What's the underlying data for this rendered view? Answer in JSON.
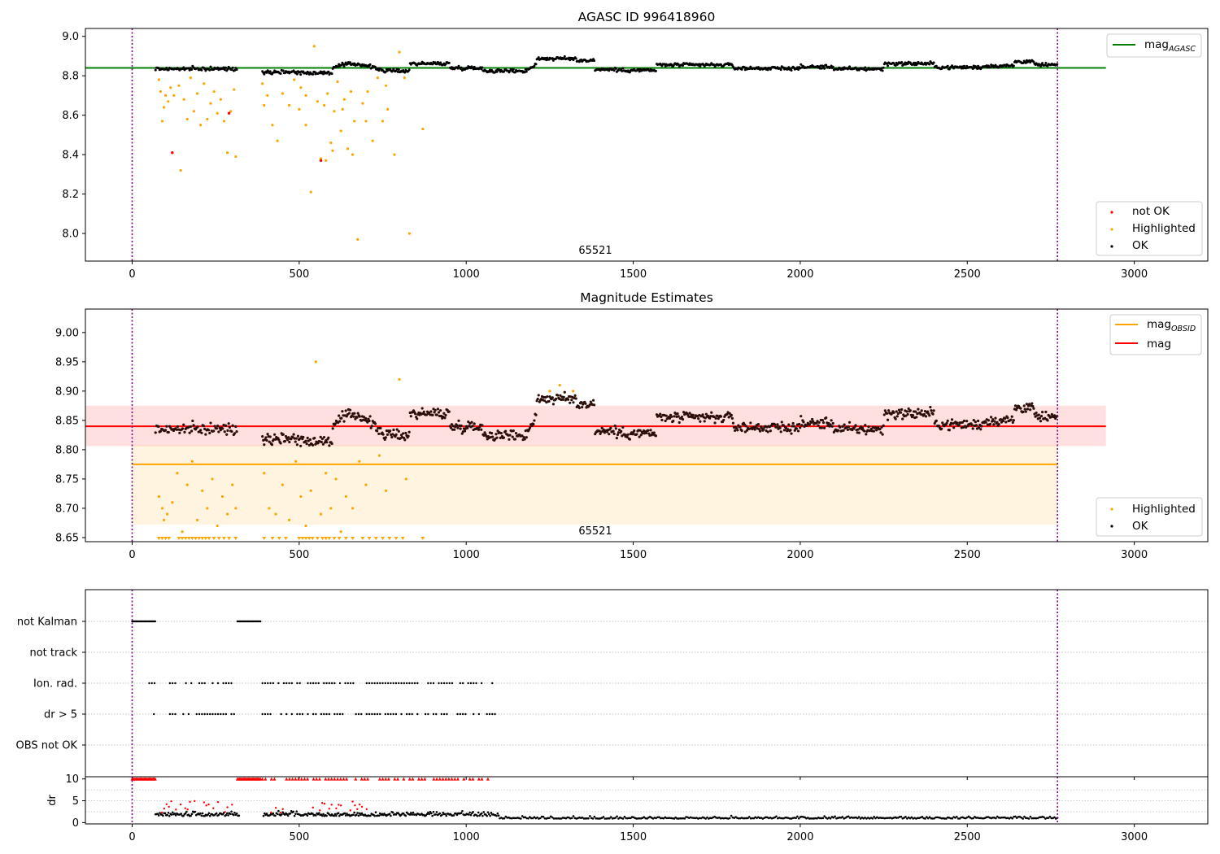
{
  "chart_data": [
    {
      "type": "scatter",
      "title": "AGASC ID 996418960",
      "xlim": [
        -140,
        3220
      ],
      "ylim": [
        7.86,
        9.04
      ],
      "xticks": [
        "0",
        "500",
        "1000",
        "1500",
        "2000",
        "2500",
        "3000"
      ],
      "yticks": [
        "8.0",
        "8.2",
        "8.4",
        "8.6",
        "8.8",
        "9.0"
      ],
      "annotation": "65521",
      "vlines": [
        0,
        2770
      ],
      "series": [
        {
          "name": "mag_AGASC",
          "kind": "hline",
          "y": 8.84,
          "x_range": [
            -140,
            2915
          ],
          "color": "#008000"
        },
        {
          "name": "OK",
          "kind": "points",
          "color": "#000000",
          "track": "ok_track"
        },
        {
          "name": "Highlighted",
          "kind": "points",
          "color": "#ffa500",
          "points": [
            [
              80,
              8.78
            ],
            [
              85,
              8.72
            ],
            [
              90,
              8.57
            ],
            [
              95,
              8.64
            ],
            [
              100,
              8.7
            ],
            [
              108,
              8.67
            ],
            [
              115,
              8.74
            ],
            [
              125,
              8.7
            ],
            [
              140,
              8.75
            ],
            [
              145,
              8.32
            ],
            [
              155,
              8.68
            ],
            [
              165,
              8.58
            ],
            [
              175,
              8.79
            ],
            [
              185,
              8.62
            ],
            [
              195,
              8.71
            ],
            [
              205,
              8.55
            ],
            [
              215,
              8.76
            ],
            [
              225,
              8.58
            ],
            [
              235,
              8.66
            ],
            [
              245,
              8.72
            ],
            [
              255,
              8.61
            ],
            [
              265,
              8.68
            ],
            [
              275,
              8.57
            ],
            [
              285,
              8.41
            ],
            [
              295,
              8.62
            ],
            [
              305,
              8.73
            ],
            [
              310,
              8.39
            ],
            [
              390,
              8.76
            ],
            [
              395,
              8.65
            ],
            [
              405,
              8.7
            ],
            [
              420,
              8.55
            ],
            [
              435,
              8.47
            ],
            [
              450,
              8.71
            ],
            [
              470,
              8.65
            ],
            [
              485,
              8.78
            ],
            [
              505,
              8.74
            ],
            [
              520,
              8.55
            ],
            [
              535,
              8.21
            ],
            [
              545,
              8.95
            ],
            [
              555,
              8.67
            ],
            [
              565,
              8.38
            ],
            [
              575,
              8.65
            ],
            [
              585,
              8.71
            ],
            [
              595,
              8.46
            ],
            [
              605,
              8.62
            ],
            [
              615,
              8.77
            ],
            [
              625,
              8.52
            ],
            [
              635,
              8.68
            ],
            [
              645,
              8.43
            ],
            [
              655,
              8.72
            ],
            [
              665,
              8.57
            ],
            [
              675,
              7.97
            ],
            [
              690,
              8.66
            ],
            [
              705,
              8.72
            ],
            [
              720,
              8.47
            ],
            [
              735,
              8.79
            ],
            [
              750,
              8.57
            ],
            [
              765,
              8.63
            ],
            [
              785,
              8.4
            ],
            [
              800,
              8.92
            ],
            [
              815,
              8.79
            ],
            [
              830,
              8.0
            ],
            [
              870,
              8.53
            ],
            [
              500,
              8.63
            ],
            [
              520,
              8.7
            ],
            [
              580,
              8.37
            ],
            [
              600,
              8.42
            ],
            [
              630,
              8.63
            ],
            [
              660,
              8.4
            ],
            [
              700,
              8.57
            ],
            [
              760,
              8.75
            ]
          ]
        },
        {
          "name": "not OK",
          "kind": "points",
          "color": "#ff0000",
          "points": [
            [
              120,
              8.41
            ],
            [
              290,
              8.61
            ],
            [
              565,
              8.37
            ]
          ]
        }
      ],
      "legend_top": [
        "mag_AGASC"
      ],
      "legend_bottom": [
        "not OK",
        "Highlighted",
        "OK"
      ]
    },
    {
      "type": "scatter",
      "title": "Magnitude Estimates",
      "xlim": [
        -140,
        3220
      ],
      "ylim": [
        8.643,
        9.04
      ],
      "xticks": [
        "0",
        "500",
        "1000",
        "1500",
        "2000",
        "2500",
        "3000"
      ],
      "yticks": [
        "8.65",
        "8.70",
        "8.75",
        "8.80",
        "8.85",
        "8.90",
        "8.95",
        "9.00"
      ],
      "annotation": "65521",
      "vlines": [
        0,
        2770
      ],
      "series": [
        {
          "name": "mag_OBSID",
          "kind": "hline",
          "y": 8.775,
          "x_range": [
            0,
            2770
          ],
          "color": "#ffa500",
          "band": [
            8.672,
            8.808
          ]
        },
        {
          "name": "mag",
          "kind": "hline",
          "y": 8.84,
          "x_range": [
            -140,
            2915
          ],
          "color": "#ff0000",
          "band": [
            8.806,
            8.875
          ]
        },
        {
          "name": "OK",
          "kind": "points",
          "color": "#000000",
          "track": "ok_track"
        },
        {
          "name": "Highlighted",
          "kind": "points",
          "color": "#ffa500",
          "points": [
            [
              80,
              8.72
            ],
            [
              90,
              8.7
            ],
            [
              95,
              8.68
            ],
            [
              105,
              8.69
            ],
            [
              120,
              8.71
            ],
            [
              135,
              8.76
            ],
            [
              150,
              8.66
            ],
            [
              165,
              8.74
            ],
            [
              180,
              8.78
            ],
            [
              195,
              8.68
            ],
            [
              210,
              8.73
            ],
            [
              225,
              8.7
            ],
            [
              240,
              8.75
            ],
            [
              255,
              8.67
            ],
            [
              270,
              8.72
            ],
            [
              285,
              8.69
            ],
            [
              300,
              8.74
            ],
            [
              310,
              8.7
            ],
            [
              395,
              8.76
            ],
            [
              410,
              8.7
            ],
            [
              430,
              8.69
            ],
            [
              450,
              8.74
            ],
            [
              470,
              8.68
            ],
            [
              490,
              8.78
            ],
            [
              505,
              8.72
            ],
            [
              520,
              8.67
            ],
            [
              535,
              8.73
            ],
            [
              550,
              8.95
            ],
            [
              565,
              8.69
            ],
            [
              580,
              8.76
            ],
            [
              595,
              8.7
            ],
            [
              610,
              8.75
            ],
            [
              625,
              8.66
            ],
            [
              640,
              8.72
            ],
            [
              660,
              8.7
            ],
            [
              680,
              8.78
            ],
            [
              700,
              8.74
            ],
            [
              740,
              8.79
            ],
            [
              760,
              8.73
            ],
            [
              800,
              8.92
            ],
            [
              820,
              8.75
            ],
            [
              1250,
              8.9
            ],
            [
              1280,
              8.91
            ],
            [
              1320,
              8.9
            ]
          ]
        },
        {
          "name": "Highlighted (off-scale)",
          "kind": "markers",
          "color": "#ffa500",
          "x": [
            80,
            90,
            100,
            110,
            140,
            150,
            160,
            170,
            180,
            190,
            200,
            210,
            220,
            230,
            245,
            260,
            275,
            290,
            310,
            395,
            420,
            440,
            460,
            500,
            510,
            520,
            530,
            540,
            555,
            570,
            580,
            590,
            605,
            620,
            640,
            660,
            690,
            710,
            730,
            750,
            770,
            790,
            810,
            870
          ]
        }
      ],
      "legend_top": [
        "mag_OBSID",
        "mag"
      ],
      "legend_bottom": [
        "Highlighted",
        "OK"
      ]
    },
    {
      "type": "scatter",
      "title": "",
      "xlim": [
        -140,
        3220
      ],
      "categories": [
        "not Kalman",
        "not track",
        "Ion. rad.",
        "dr > 5",
        "OBS not OK"
      ],
      "flag_ranges": {
        "not Kalman": [
          [
            0,
            70
          ],
          [
            315,
            385
          ]
        ],
        "not track": [],
        "Ion. rad.": [
          [
            35,
            70
          ],
          [
            105,
            310
          ],
          [
            390,
            1090
          ]
        ],
        "dr > 5": [
          [
            65,
            70
          ],
          [
            105,
            310
          ],
          [
            390,
            1090
          ]
        ],
        "OBS not OK": []
      },
      "vlines": [
        0,
        2770
      ]
    },
    {
      "type": "scatter",
      "title": "",
      "ylabel": "dr",
      "xlim": [
        -140,
        3220
      ],
      "ylim": [
        -0.3,
        10.5
      ],
      "yticks": [
        "0",
        "5",
        "10"
      ],
      "xticks": [
        "0",
        "500",
        "1000",
        "1500",
        "2000",
        "2500",
        "3000"
      ],
      "vlines": [
        0,
        2770
      ]
    }
  ]
}
